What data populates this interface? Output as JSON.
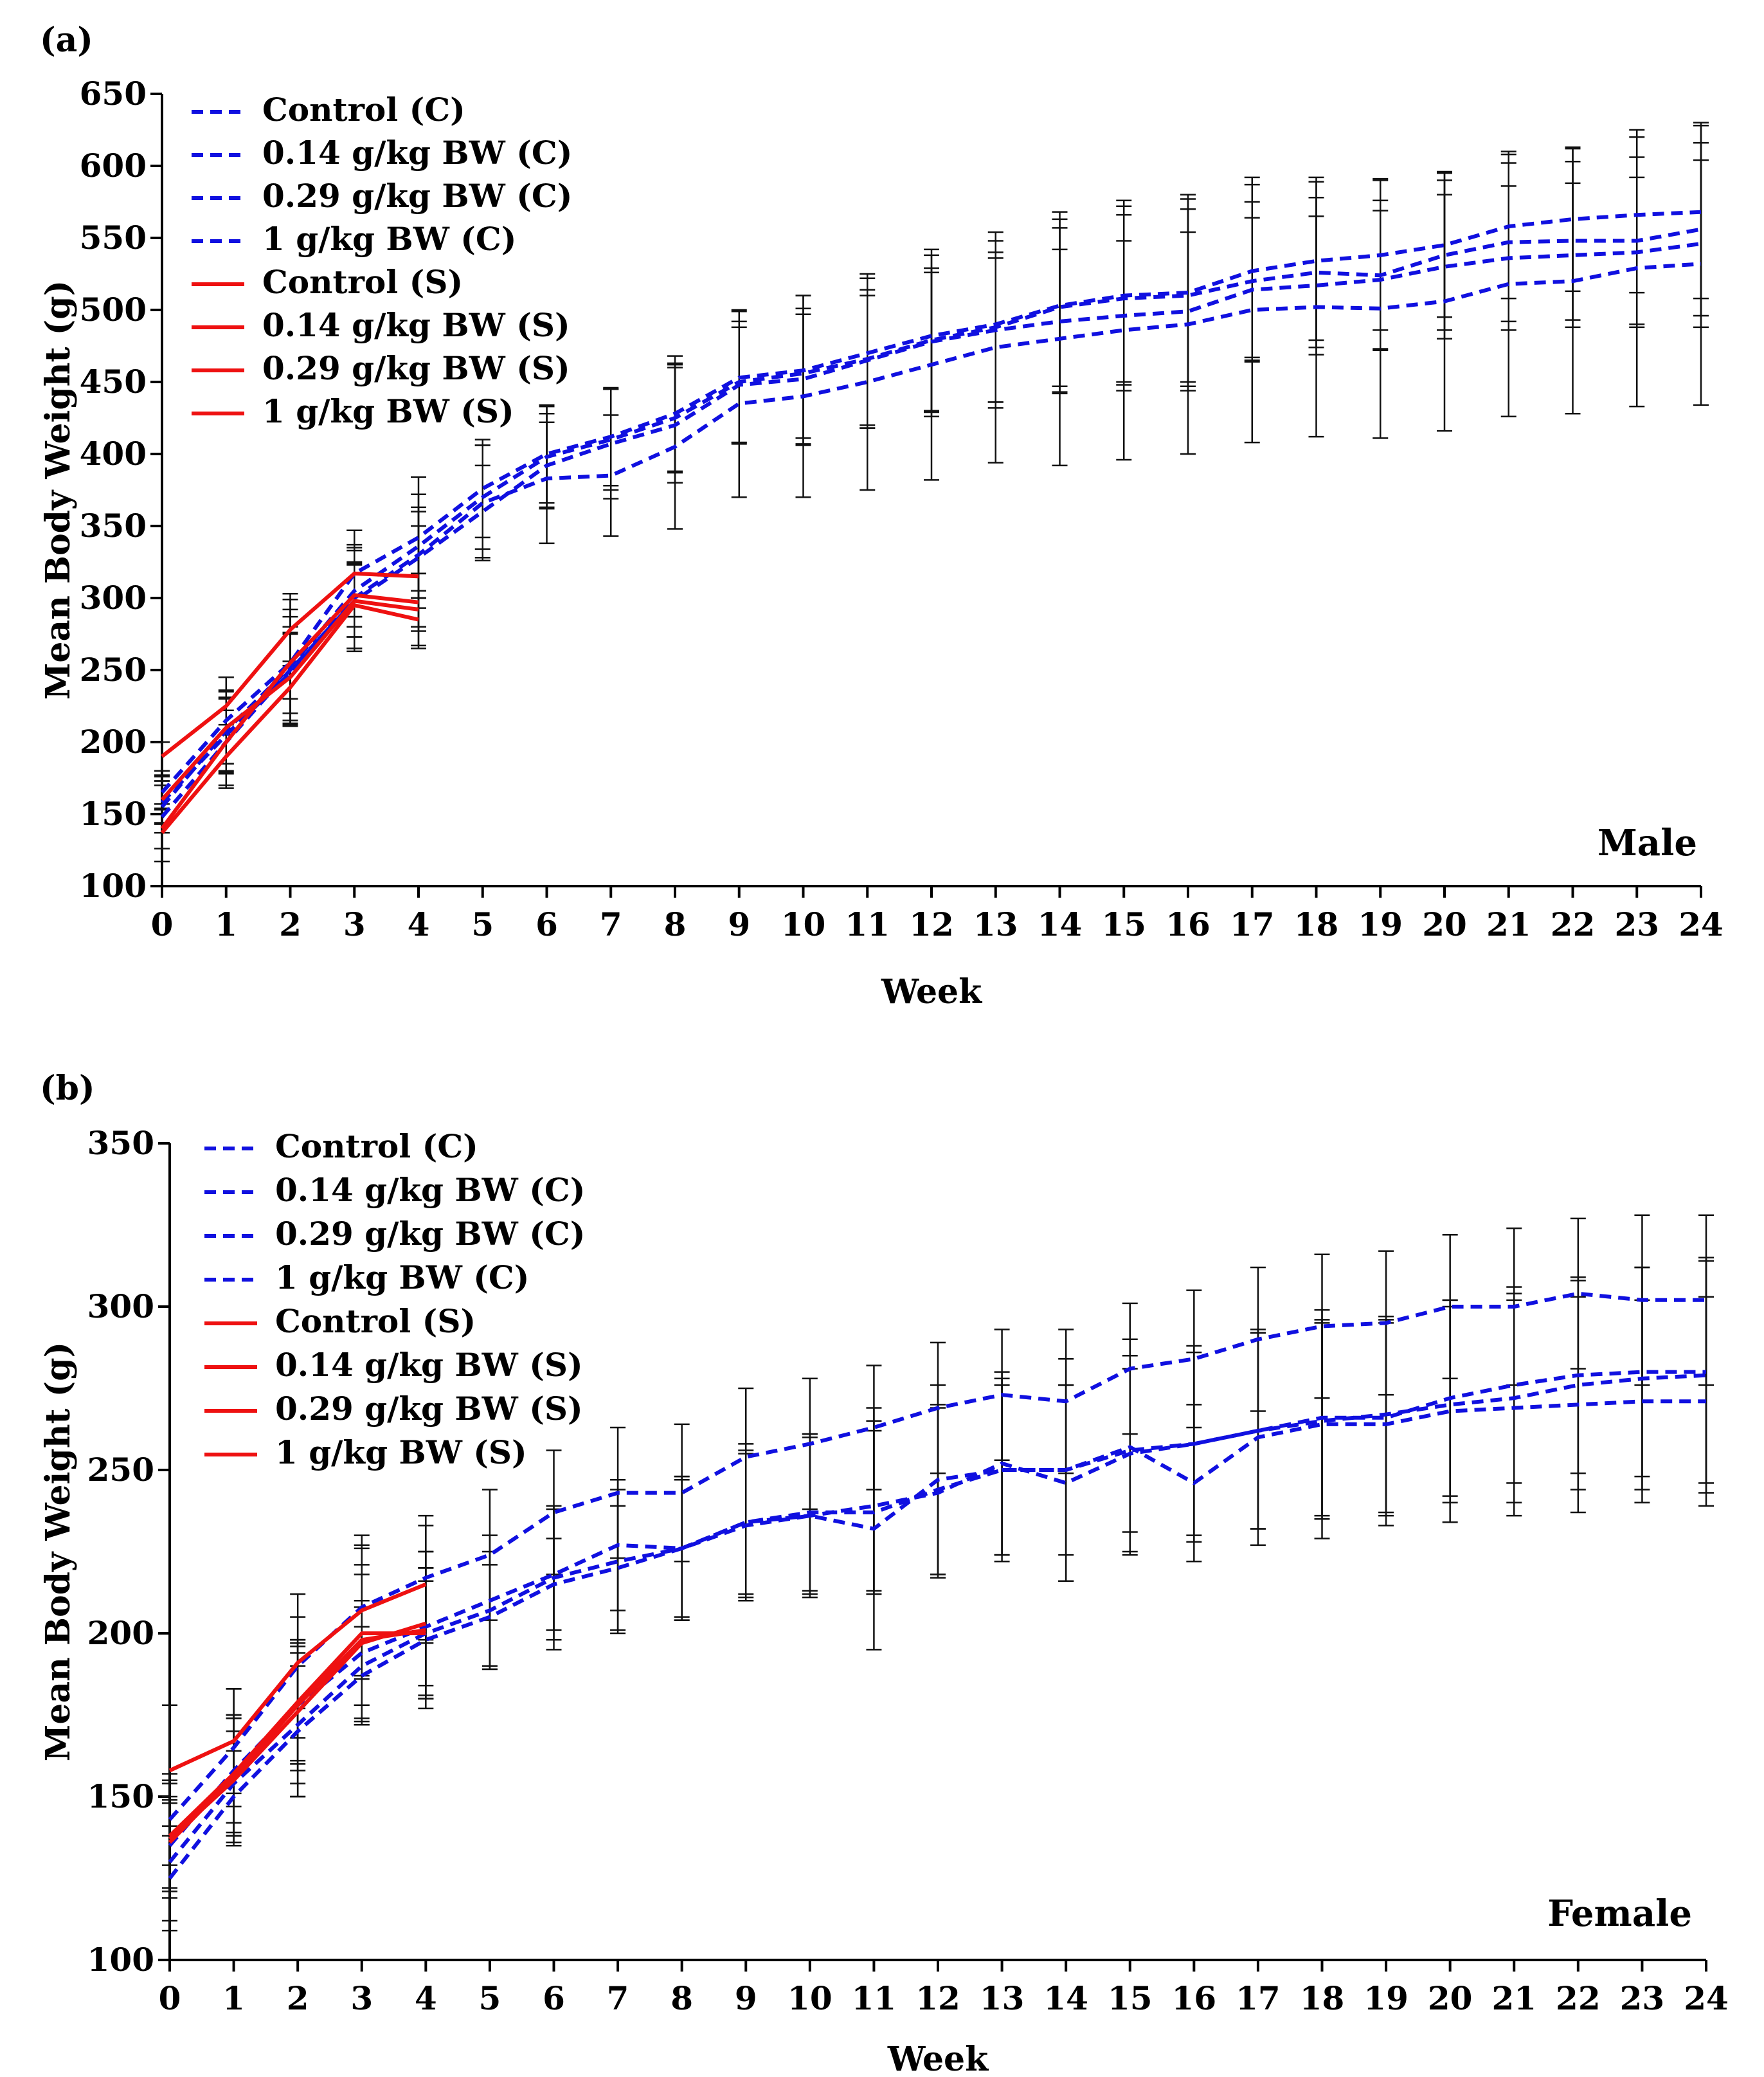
{
  "chart_data": [
    {
      "type": "line",
      "panel_label": "(a)",
      "sex_label": "Male",
      "xlabel": "Week",
      "ylabel": "Mean Body  Weight (g)",
      "xlim": [
        0,
        24
      ],
      "ylim": [
        100,
        650
      ],
      "x_ticks": [
        0,
        1,
        2,
        3,
        4,
        5,
        6,
        7,
        8,
        9,
        10,
        11,
        12,
        13,
        14,
        15,
        16,
        17,
        18,
        19,
        20,
        21,
        22,
        23,
        24
      ],
      "y_ticks": [
        100,
        150,
        200,
        250,
        300,
        350,
        400,
        450,
        500,
        550,
        600,
        650
      ],
      "legend_position": "top-left",
      "series": [
        {
          "name": "Control (C)",
          "style": "dashed",
          "color": "#1010e0",
          "x": [
            0,
            1,
            2,
            3,
            4,
            5,
            6,
            7,
            8,
            9,
            10,
            11,
            12,
            13,
            14,
            15,
            16,
            17,
            18,
            19,
            20,
            21,
            22,
            23,
            24
          ],
          "values": [
            165,
            215,
            255,
            317,
            342,
            376,
            400,
            412,
            428,
            453,
            458,
            470,
            482,
            490,
            503,
            510,
            512,
            527,
            534,
            538,
            545,
            558,
            563,
            566,
            568
          ],
          "err": [
            12,
            30,
            44,
            30,
            42,
            34,
            34,
            34,
            40,
            46,
            52,
            52,
            56,
            58,
            60,
            62,
            65,
            60,
            55,
            52,
            50,
            50,
            50,
            54,
            60
          ]
        },
        {
          "name": "0.14 g/kg BW (C)",
          "style": "dashed",
          "color": "#1010e0",
          "x": [
            0,
            1,
            2,
            3,
            4,
            5,
            6,
            7,
            8,
            9,
            10,
            11,
            12,
            13,
            14,
            15,
            16,
            17,
            18,
            19,
            20,
            21,
            22,
            23,
            24
          ],
          "values": [
            158,
            205,
            248,
            300,
            330,
            366,
            383,
            385,
            405,
            435,
            440,
            450,
            462,
            474,
            480,
            486,
            490,
            500,
            502,
            501,
            506,
            518,
            520,
            529,
            532
          ],
          "err": [
            15,
            26,
            28,
            35,
            30,
            40,
            45,
            42,
            57,
            65,
            70,
            75,
            80,
            80,
            88,
            90,
            90,
            92,
            90,
            90,
            90,
            92,
            92,
            96,
            98
          ]
        },
        {
          "name": "0.29 g/kg BW (C)",
          "style": "dashed",
          "color": "#1010e0",
          "x": [
            0,
            1,
            2,
            3,
            4,
            5,
            6,
            7,
            8,
            9,
            10,
            11,
            12,
            13,
            14,
            15,
            16,
            17,
            18,
            19,
            20,
            21,
            22,
            23,
            24
          ],
          "values": [
            148,
            200,
            250,
            298,
            328,
            360,
            392,
            407,
            420,
            448,
            452,
            465,
            478,
            486,
            492,
            496,
            499,
            514,
            517,
            521,
            530,
            536,
            538,
            540,
            546
          ],
          "err": [
            22,
            30,
            37,
            35,
            35,
            32,
            30,
            38,
            40,
            40,
            45,
            45,
            48,
            50,
            50,
            52,
            55,
            50,
            48,
            48,
            50,
            50,
            50,
            52,
            58
          ]
        },
        {
          "name": "1 g/kg BW (C)",
          "style": "dashed",
          "color": "#1010e0",
          "x": [
            0,
            1,
            2,
            3,
            4,
            5,
            6,
            7,
            8,
            9,
            10,
            11,
            12,
            13,
            14,
            15,
            16,
            17,
            18,
            19,
            20,
            21,
            22,
            23,
            24
          ],
          "values": [
            155,
            208,
            252,
            305,
            336,
            370,
            398,
            410,
            425,
            450,
            456,
            466,
            479,
            488,
            502,
            508,
            510,
            520,
            526,
            524,
            538,
            547,
            548,
            548,
            556
          ],
          "err": [
            18,
            28,
            40,
            32,
            36,
            36,
            35,
            35,
            38,
            42,
            45,
            48,
            50,
            52,
            55,
            58,
            60,
            55,
            52,
            52,
            52,
            55,
            55,
            58,
            60
          ]
        },
        {
          "name": "Control (S)",
          "style": "solid",
          "color": "#ee1111",
          "x": [
            0,
            1,
            2,
            3,
            4
          ],
          "values": [
            190,
            225,
            278,
            317,
            315
          ],
          "err": [
            10,
            20,
            25,
            30,
            35
          ]
        },
        {
          "name": "0.14 g/kg BW (S)",
          "style": "solid",
          "color": "#ee1111",
          "x": [
            0,
            1,
            2,
            3,
            4
          ],
          "values": [
            140,
            200,
            255,
            302,
            297
          ],
          "err": [
            14,
            22,
            25,
            22,
            20
          ]
        },
        {
          "name": "0.29 g/kg BW (S)",
          "style": "solid",
          "color": "#ee1111",
          "x": [
            0,
            1,
            2,
            3,
            4
          ],
          "values": [
            137,
            190,
            238,
            295,
            285
          ],
          "err": [
            20,
            22,
            18,
            30,
            20
          ]
        },
        {
          "name": "1 g/kg BW (S)",
          "style": "solid",
          "color": "#ee1111",
          "x": [
            0,
            1,
            2,
            3,
            4
          ],
          "values": [
            160,
            210,
            245,
            298,
            292
          ],
          "err": [
            16,
            25,
            30,
            25,
            25
          ]
        }
      ]
    },
    {
      "type": "line",
      "panel_label": "(b)",
      "sex_label": "Female",
      "xlabel": "Week",
      "ylabel": "Mean Body  Weight (g)",
      "xlim": [
        0,
        24
      ],
      "ylim": [
        100,
        350
      ],
      "x_ticks": [
        0,
        1,
        2,
        3,
        4,
        5,
        6,
        7,
        8,
        9,
        10,
        11,
        12,
        13,
        14,
        15,
        16,
        17,
        18,
        19,
        20,
        21,
        22,
        23,
        24
      ],
      "y_ticks": [
        100,
        150,
        200,
        250,
        300,
        350
      ],
      "legend_position": "top-left",
      "series": [
        {
          "name": "Control (C)",
          "style": "dashed",
          "color": "#1010e0",
          "x": [
            0,
            1,
            2,
            3,
            4,
            5,
            6,
            7,
            8,
            9,
            10,
            11,
            12,
            13,
            14,
            15,
            16,
            17,
            18,
            19,
            20,
            21,
            22,
            23,
            24
          ],
          "values": [
            143,
            165,
            190,
            208,
            217,
            224,
            237,
            243,
            243,
            254,
            258,
            263,
            269,
            273,
            271,
            281,
            284,
            290,
            294,
            295,
            300,
            300,
            304,
            302,
            302
          ],
          "err": [
            14,
            18,
            22,
            22,
            19,
            20,
            19,
            20,
            21,
            21,
            20,
            19,
            20,
            20,
            22,
            20,
            21,
            22,
            22,
            22,
            22,
            24,
            23,
            26,
            26
          ]
        },
        {
          "name": "0.14 g/kg BW (C)",
          "style": "dashed",
          "color": "#1010e0",
          "x": [
            0,
            1,
            2,
            3,
            4,
            5,
            6,
            7,
            8,
            9,
            10,
            11,
            12,
            13,
            14,
            15,
            16,
            17,
            18,
            19,
            20,
            21,
            22,
            23,
            24
          ],
          "values": [
            125,
            150,
            170,
            187,
            198,
            205,
            215,
            220,
            226,
            233,
            236,
            232,
            247,
            250,
            250,
            257,
            246,
            260,
            264,
            264,
            268,
            269,
            270,
            271,
            271
          ],
          "err": [
            16,
            14,
            20,
            15,
            18,
            16,
            14,
            19,
            21,
            22,
            24,
            37,
            29,
            28,
            34,
            33,
            24,
            33,
            35,
            31,
            34,
            33,
            33,
            31,
            32
          ]
        },
        {
          "name": "0.29 g/kg BW (C)",
          "style": "dashed",
          "color": "#1010e0",
          "x": [
            0,
            1,
            2,
            3,
            4,
            5,
            6,
            7,
            8,
            9,
            10,
            11,
            12,
            13,
            14,
            15,
            16,
            17,
            18,
            19,
            20,
            21,
            22,
            23,
            24
          ],
          "values": [
            130,
            154,
            172,
            190,
            200,
            207,
            217,
            222,
            226,
            234,
            236,
            239,
            243,
            252,
            246,
            255,
            258,
            262,
            265,
            267,
            270,
            272,
            276,
            278,
            279
          ],
          "err": [
            18,
            16,
            22,
            18,
            20,
            18,
            22,
            22,
            22,
            24,
            25,
            26,
            26,
            28,
            30,
            30,
            30,
            30,
            30,
            30,
            30,
            32,
            32,
            34,
            36
          ]
        },
        {
          "name": "1 g/kg BW (C)",
          "style": "dashed",
          "color": "#1010e0",
          "x": [
            0,
            1,
            2,
            3,
            4,
            5,
            6,
            7,
            8,
            9,
            10,
            11,
            12,
            13,
            14,
            15,
            16,
            17,
            18,
            19,
            20,
            21,
            22,
            23,
            24
          ],
          "values": [
            135,
            158,
            178,
            194,
            202,
            210,
            218,
            227,
            226,
            234,
            237,
            237,
            244,
            250,
            250,
            256,
            258,
            262,
            266,
            266,
            272,
            276,
            279,
            280,
            280
          ],
          "err": [
            14,
            16,
            20,
            16,
            18,
            20,
            20,
            20,
            22,
            22,
            24,
            25,
            26,
            26,
            26,
            25,
            28,
            30,
            30,
            30,
            30,
            30,
            30,
            32,
            34
          ]
        },
        {
          "name": "Control (S)",
          "style": "solid",
          "color": "#ee1111",
          "x": [
            0,
            1,
            2,
            3,
            4
          ],
          "values": [
            158,
            167,
            191,
            207,
            215
          ],
          "err": [
            20,
            16,
            14,
            20,
            18
          ]
        },
        {
          "name": "0.14 g/kg BW (S)",
          "style": "solid",
          "color": "#ee1111",
          "x": [
            0,
            1,
            2,
            3,
            4
          ],
          "values": [
            138,
            157,
            179,
            200,
            200
          ],
          "err": [
            16,
            18,
            18,
            26,
            20
          ]
        },
        {
          "name": "0.29 g/kg BW (S)",
          "style": "solid",
          "color": "#ee1111",
          "x": [
            0,
            1,
            2,
            3,
            4
          ],
          "values": [
            137,
            155,
            176,
            197,
            203
          ],
          "err": [
            18,
            20,
            22,
            24,
            22
          ]
        },
        {
          "name": "1 g/kg BW (S)",
          "style": "solid",
          "color": "#ee1111",
          "x": [
            0,
            1,
            2,
            3,
            4
          ],
          "values": [
            136,
            156,
            178,
            198,
            201
          ],
          "err": [
            14,
            18,
            18,
            20,
            24
          ]
        }
      ]
    }
  ]
}
